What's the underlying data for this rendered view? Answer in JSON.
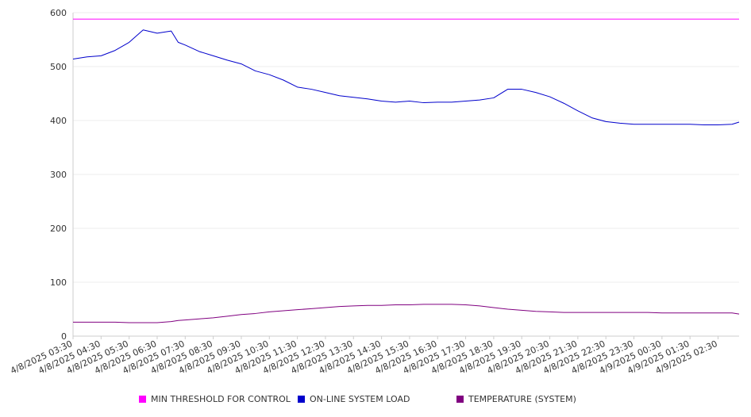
{
  "chart_data": {
    "type": "line",
    "y_ticks": [
      0,
      100,
      200,
      300,
      400,
      500,
      600
    ],
    "ylim": [
      0,
      600
    ],
    "x_tick_labels": [
      "4/8/2025 03:30",
      "4/8/2025 04:30",
      "4/8/2025 05:30",
      "4/8/2025 06:30",
      "4/8/2025 07:30",
      "4/8/2025 08:30",
      "4/8/2025 09:30",
      "4/8/2025 10:30",
      "4/8/2025 11:30",
      "4/8/2025 12:30",
      "4/8/2025 13:30",
      "4/8/2025 14:30",
      "4/8/2025 15:30",
      "4/8/2025 16:30",
      "4/8/2025 17:30",
      "4/8/2025 18:30",
      "4/8/2025 19:30",
      "4/8/2025 20:30",
      "4/8/2025 21:30",
      "4/8/2025 22:30",
      "4/8/2025 23:30",
      "4/9/2025 00:30",
      "4/9/2025 01:30",
      "4/9/2025 02:30"
    ],
    "x_hours": [
      3.5,
      4.0,
      4.5,
      5.0,
      5.5,
      6.0,
      6.5,
      7.0,
      7.25,
      7.5,
      8.0,
      8.5,
      9.0,
      9.5,
      10.0,
      10.5,
      11.0,
      11.5,
      12.0,
      12.5,
      13.0,
      13.5,
      14.0,
      14.5,
      15.0,
      15.5,
      16.0,
      16.5,
      17.0,
      17.5,
      18.0,
      18.5,
      19.0,
      19.5,
      20.0,
      20.5,
      21.0,
      21.5,
      22.0,
      22.5,
      23.0,
      23.5,
      24.0,
      24.5,
      25.0,
      25.5,
      26.0,
      26.5,
      27.0,
      27.25
    ],
    "series": [
      {
        "name": "MIN THRESHOLD FOR CONTROL",
        "color": "#ff00ff",
        "values": [
          588,
          588,
          588,
          588,
          588,
          588,
          588,
          588,
          588,
          588,
          588,
          588,
          588,
          588,
          588,
          588,
          588,
          588,
          588,
          588,
          588,
          588,
          588,
          588,
          588,
          588,
          588,
          588,
          588,
          588,
          588,
          588,
          588,
          588,
          588,
          588,
          588,
          588,
          588,
          588,
          588,
          588,
          588,
          588,
          588,
          588,
          588,
          588,
          588,
          588
        ]
      },
      {
        "name": "ON-LINE SYSTEM LOAD",
        "color": "#0000cc",
        "values": [
          514,
          518,
          520,
          530,
          545,
          568,
          562,
          566,
          545,
          540,
          528,
          520,
          512,
          505,
          492,
          485,
          475,
          462,
          458,
          452,
          446,
          443,
          440,
          436,
          434,
          436,
          433,
          434,
          434,
          436,
          438,
          442,
          458,
          458,
          452,
          444,
          432,
          418,
          405,
          398,
          395,
          393,
          393,
          393,
          393,
          393,
          392,
          392,
          393,
          397
        ]
      },
      {
        "name": "TEMPERATURE (SYSTEM)",
        "color": "#800080",
        "values": [
          26,
          26,
          26,
          26,
          25,
          25,
          25,
          27,
          29,
          30,
          32,
          34,
          37,
          40,
          42,
          45,
          47,
          49,
          51,
          53,
          55,
          56,
          57,
          57,
          58,
          58,
          59,
          59,
          59,
          58,
          56,
          53,
          50,
          48,
          46,
          45,
          44,
          44,
          44,
          44,
          44,
          44,
          44,
          43,
          43,
          43,
          43,
          43,
          43,
          41
        ]
      }
    ]
  }
}
